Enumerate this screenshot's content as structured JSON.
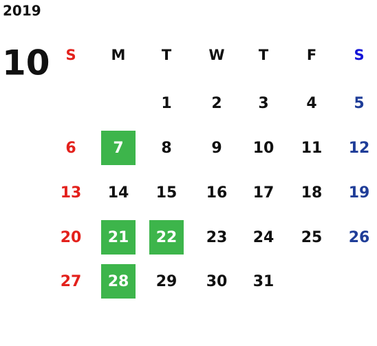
{
  "calendar": {
    "year": "2019",
    "month": "10",
    "weekdays": [
      "S",
      "M",
      "T",
      "W",
      "T",
      "F",
      "S"
    ],
    "weeks": [
      [
        null,
        null,
        1,
        2,
        3,
        4,
        5
      ],
      [
        6,
        7,
        8,
        9,
        10,
        11,
        12
      ],
      [
        13,
        14,
        15,
        16,
        17,
        18,
        19
      ],
      [
        20,
        21,
        22,
        23,
        24,
        25,
        26
      ],
      [
        27,
        28,
        29,
        30,
        31,
        null,
        null
      ]
    ],
    "highlighted_days": [
      7,
      21,
      22,
      28
    ],
    "highlight_color": "#3db54b",
    "sunday_color": "#e3211c",
    "saturday_header_color": "#1515d8",
    "saturday_color": "#1f3d98",
    "weekday_color": "#111111"
  }
}
